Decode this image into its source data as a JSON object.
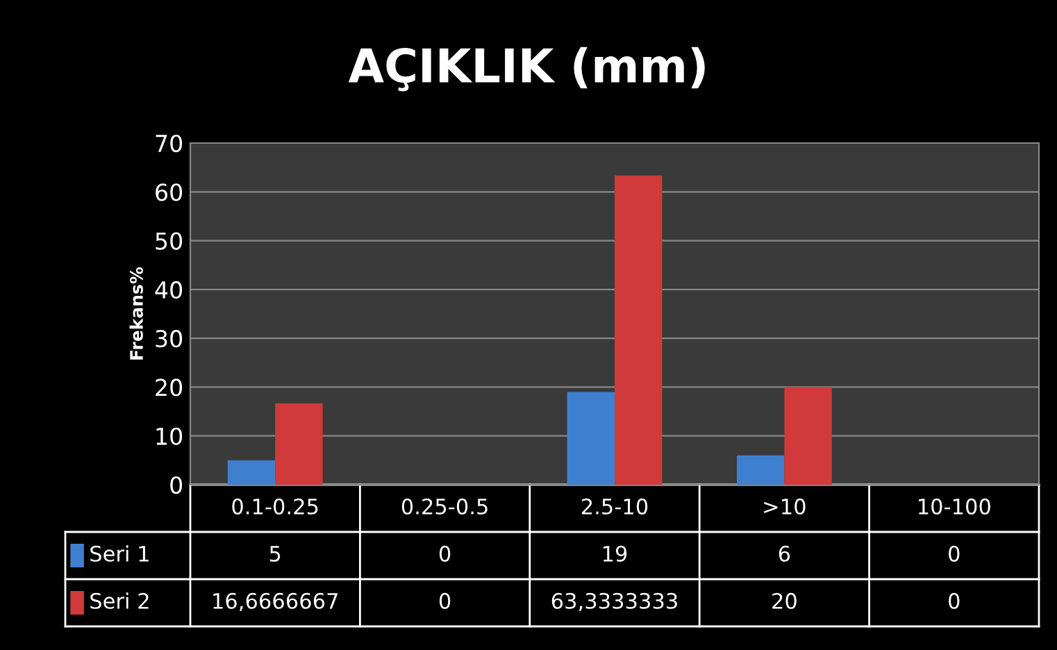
{
  "chart_data": {
    "type": "bar",
    "title": "AÇIKLIK (mm)",
    "ylabel": "Frekans%",
    "categories": [
      "0.1-0.25",
      "0.25-0.5",
      "2.5-10",
      ">10",
      "10-100"
    ],
    "series": [
      {
        "name": "Seri 1",
        "color": "#3f7fd0",
        "values": [
          5,
          0,
          19,
          6,
          0
        ],
        "value_labels": [
          "5",
          "0",
          "19",
          "6",
          "0"
        ]
      },
      {
        "name": "Seri 2",
        "color": "#d03a3a",
        "values": [
          16.6666667,
          0,
          63.3333333,
          20,
          0
        ],
        "value_labels": [
          "16,6666667",
          "0",
          "63,3333333",
          "20",
          "0"
        ]
      }
    ],
    "ylim": [
      0,
      70
    ],
    "yticks": [
      0,
      10,
      20,
      30,
      40,
      50,
      60,
      70
    ],
    "grid": "y",
    "legend": "bottom left"
  }
}
